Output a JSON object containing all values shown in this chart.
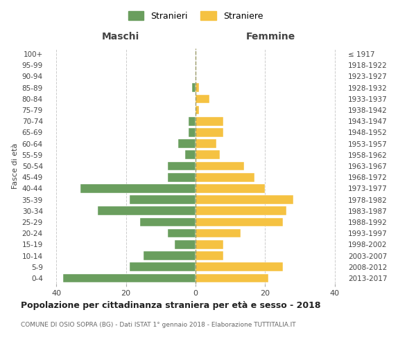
{
  "age_groups": [
    "0-4",
    "5-9",
    "10-14",
    "15-19",
    "20-24",
    "25-29",
    "30-34",
    "35-39",
    "40-44",
    "45-49",
    "50-54",
    "55-59",
    "60-64",
    "65-69",
    "70-74",
    "75-79",
    "80-84",
    "85-89",
    "90-94",
    "95-99",
    "100+"
  ],
  "birth_years": [
    "2013-2017",
    "2008-2012",
    "2003-2007",
    "1998-2002",
    "1993-1997",
    "1988-1992",
    "1983-1987",
    "1978-1982",
    "1973-1977",
    "1968-1972",
    "1963-1967",
    "1958-1962",
    "1953-1957",
    "1948-1952",
    "1943-1947",
    "1938-1942",
    "1933-1937",
    "1928-1932",
    "1923-1927",
    "1918-1922",
    "≤ 1917"
  ],
  "maschi": [
    38,
    19,
    15,
    6,
    8,
    16,
    28,
    19,
    33,
    8,
    8,
    3,
    5,
    2,
    2,
    0,
    0,
    1,
    0,
    0,
    0
  ],
  "femmine": [
    21,
    25,
    8,
    8,
    13,
    25,
    26,
    28,
    20,
    17,
    14,
    7,
    6,
    8,
    8,
    1,
    4,
    1,
    0,
    0,
    0
  ],
  "maschi_color": "#6a9e5e",
  "femmine_color": "#f5c242",
  "title": "Popolazione per cittadinanza straniera per età e sesso - 2018",
  "subtitle": "COMUNE DI OSIO SOPRA (BG) - Dati ISTAT 1° gennaio 2018 - Elaborazione TUTTITALIA.IT",
  "xlabel_left": "Maschi",
  "xlabel_right": "Femmine",
  "ylabel_left": "Fasce di età",
  "legend_maschi": "Stranieri",
  "legend_femmine": "Straniere",
  "xlim": 43,
  "background_color": "#ffffff",
  "grid_color": "#cccccc"
}
